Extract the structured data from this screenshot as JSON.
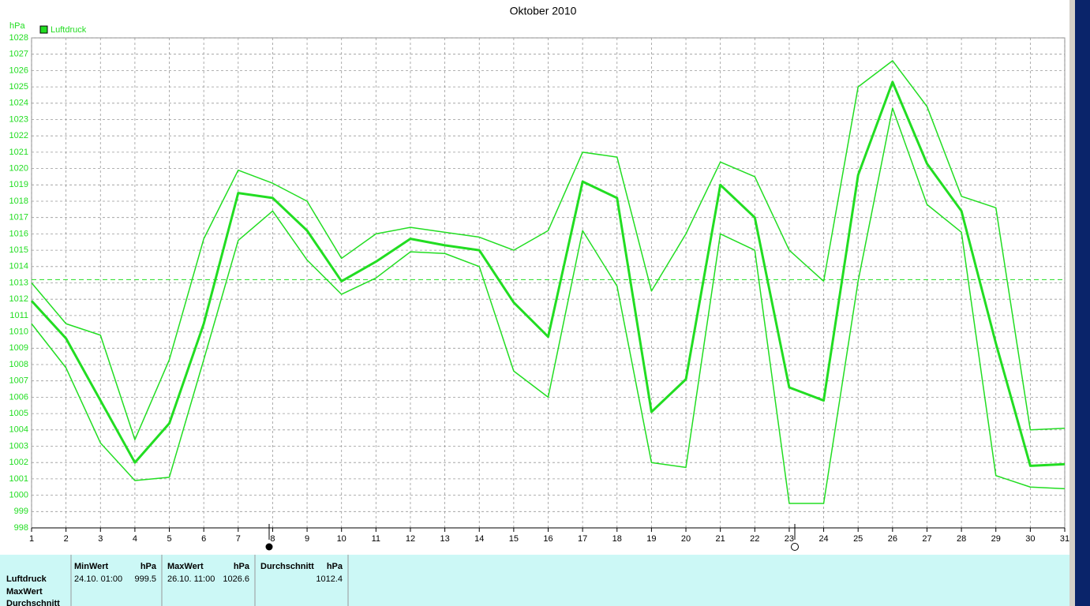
{
  "chart_data": {
    "type": "line",
    "title": "Oktober 2010",
    "y_label": "hPa",
    "legend": {
      "label": "Luftdruck",
      "color": "#22dd22"
    },
    "x": [
      1,
      2,
      3,
      4,
      5,
      6,
      7,
      8,
      9,
      10,
      11,
      12,
      13,
      14,
      15,
      16,
      17,
      18,
      19,
      20,
      21,
      22,
      23,
      24,
      25,
      26,
      27,
      28,
      29,
      30,
      31
    ],
    "xlim": [
      1,
      31
    ],
    "ylim": [
      998,
      1028
    ],
    "yticks": [
      998,
      999,
      1000,
      1001,
      1002,
      1003,
      1004,
      1005,
      1006,
      1007,
      1008,
      1009,
      1010,
      1011,
      1012,
      1013,
      1014,
      1015,
      1016,
      1017,
      1018,
      1019,
      1020,
      1021,
      1022,
      1023,
      1024,
      1025,
      1026,
      1027,
      1028
    ],
    "grid": true,
    "reference_line": 1013.2,
    "series": [
      {
        "color": "#22dd22",
        "line_width": 1.5,
        "values": [
          1013.0,
          1010.5,
          1009.8,
          1003.4,
          1008.3,
          1015.7,
          1019.9,
          1019.1,
          1018.0,
          1014.5,
          1016.0,
          1016.4,
          1016.1,
          1015.8,
          1015.0,
          1016.2,
          1021.0,
          1020.7,
          1012.5,
          1016.0,
          1020.4,
          1019.5,
          1015.0,
          1013.1,
          1025.0,
          1026.6,
          1023.8,
          1018.3,
          1017.6,
          1004.0,
          1004.1
        ]
      },
      {
        "color": "#22dd22",
        "line_width": 3,
        "values": [
          1011.9,
          1009.6,
          1005.8,
          1002.0,
          1004.4,
          1010.5,
          1018.5,
          1018.2,
          1016.2,
          1013.1,
          1014.3,
          1015.7,
          1015.3,
          1015.0,
          1011.8,
          1009.7,
          1019.2,
          1018.2,
          1005.1,
          1007.1,
          1019.0,
          1017.0,
          1006.6,
          1005.8,
          1019.6,
          1025.3,
          1020.3,
          1017.4,
          1009.3,
          1001.8,
          1001.9
        ]
      },
      {
        "color": "#22dd22",
        "line_width": 1.5,
        "values": [
          1010.5,
          1007.8,
          1003.2,
          1000.9,
          1001.1,
          1008.3,
          1015.6,
          1017.4,
          1014.4,
          1012.3,
          1013.3,
          1014.9,
          1014.8,
          1014.0,
          1007.6,
          1006.0,
          1016.2,
          1012.8,
          1002.0,
          1001.7,
          1016.0,
          1015.0,
          999.5,
          999.5,
          1013.1,
          1023.7,
          1017.8,
          1016.1,
          1001.2,
          1000.5,
          1000.4
        ]
      }
    ]
  },
  "summary": {
    "row_labels": [
      "Luftdruck",
      "MaxWert",
      "Durchschnitt"
    ],
    "columns": [
      {
        "header": "MinWert",
        "unit": "hPa",
        "time": "24.10. 01:00",
        "value": "999.5"
      },
      {
        "header": "MaxWert",
        "unit": "hPa",
        "time": "26.10. 11:00",
        "value": "1026.6"
      },
      {
        "header": "Durchschnitt",
        "unit": "hPa",
        "value": "1012.4"
      }
    ]
  }
}
